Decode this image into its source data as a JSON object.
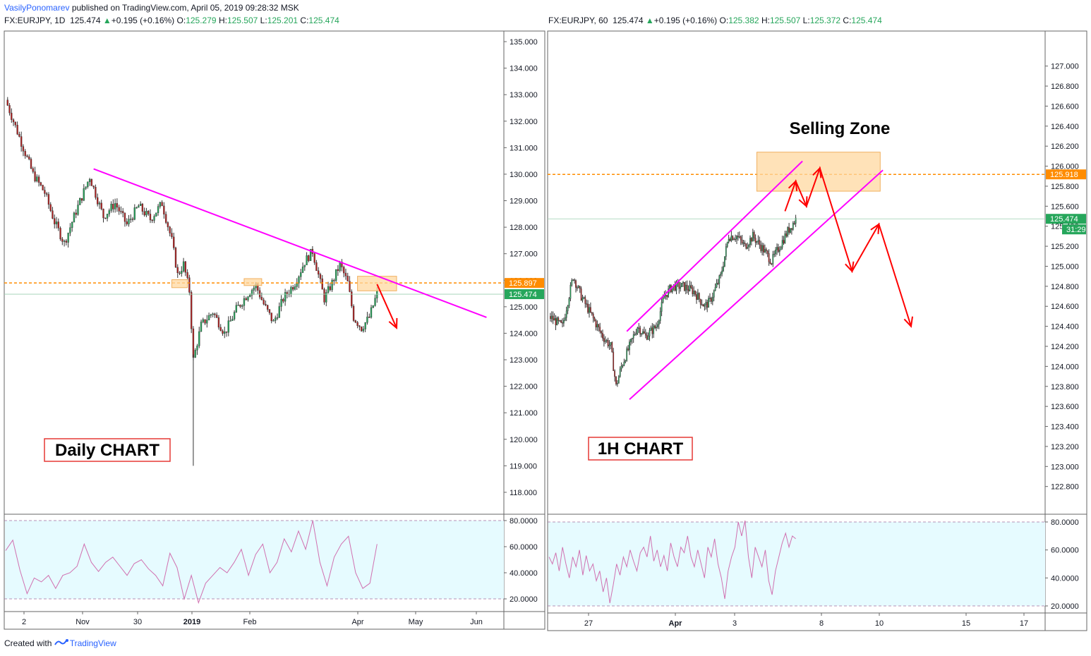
{
  "header": {
    "author": "VasilyPonomarev",
    "published_text": " published on TradingView.com, April 05, 2019 09:28:32 MSK"
  },
  "footer": {
    "created_with": "Created with",
    "brand": "TradingView"
  },
  "left_legend": {
    "symbol": "FX:EURJPY, 1D",
    "last": "125.474",
    "change": "+0.195 (+0.16%)",
    "o_label": "O:",
    "o": "125.279",
    "h_label": "H:",
    "h": "125.507",
    "l_label": "L:",
    "l": "125.201",
    "c_label": "C:",
    "c": "125.474"
  },
  "right_legend": {
    "symbol": "FX:EURJPY, 60",
    "last": "125.474",
    "change": "+0.195 (+0.16%)",
    "o_label": "O:",
    "o": "125.382",
    "h_label": "H:",
    "h": "125.507",
    "l_label": "L:",
    "l": "125.372",
    "c_label": "C:",
    "c": "125.474"
  },
  "colors": {
    "up": "#26a65b",
    "down": "#b22222",
    "trendline": "#ff00ff",
    "level": "#ff8c00",
    "zone": "#ffd8a0",
    "arrow": "#ff0000",
    "rsi_line": "#d070b0",
    "rsi_band": "#e6fbff",
    "price_tag": "#26a65b"
  },
  "chart_data": [
    {
      "type": "candlestick",
      "title": "Daily CHART",
      "symbol": "FX:EURJPY",
      "timeframe": "1D",
      "ylim": [
        117.2,
        135.4
      ],
      "y_ticks": [
        "135.000",
        "134.000",
        "133.000",
        "132.000",
        "131.000",
        "130.000",
        "129.000",
        "128.000",
        "127.000",
        "126.000",
        "125.000",
        "124.000",
        "123.000",
        "122.000",
        "121.000",
        "120.000",
        "119.000",
        "118.000"
      ],
      "x_ticks": [
        "2",
        "Nov",
        "30",
        "2019",
        "Feb",
        "Apr",
        "May",
        "Jun"
      ],
      "level": {
        "value": 125.897,
        "label": "125.897",
        "style": "dashed"
      },
      "last_price": {
        "value": 125.474,
        "label": "125.474"
      },
      "price_path": [
        [
          0,
          132.8
        ],
        [
          8,
          131.2
        ],
        [
          14,
          130.0
        ],
        [
          20,
          129.3
        ],
        [
          25,
          128.2
        ],
        [
          30,
          127.4
        ],
        [
          36,
          128.6
        ],
        [
          43,
          129.9
        ],
        [
          50,
          128.4
        ],
        [
          56,
          128.9
        ],
        [
          62,
          128.1
        ],
        [
          68,
          128.8
        ],
        [
          74,
          128.3
        ],
        [
          80,
          128.9
        ],
        [
          85,
          127.5
        ],
        [
          88,
          126.2
        ],
        [
          91,
          126.6
        ],
        [
          94,
          125.6
        ],
        [
          96,
          123.0
        ],
        [
          100,
          124.3
        ],
        [
          106,
          124.8
        ],
        [
          112,
          124.0
        ],
        [
          118,
          124.9
        ],
        [
          124,
          125.5
        ],
        [
          128,
          125.8
        ],
        [
          132,
          125.1
        ],
        [
          137,
          124.4
        ],
        [
          142,
          125.3
        ],
        [
          148,
          125.9
        ],
        [
          153,
          126.7
        ],
        [
          157,
          127.1
        ],
        [
          160,
          126.2
        ],
        [
          163,
          125.3
        ],
        [
          167,
          125.9
        ],
        [
          171,
          126.6
        ],
        [
          175,
          125.9
        ],
        [
          178,
          124.6
        ],
        [
          182,
          124.2
        ],
        [
          186,
          124.6
        ],
        [
          190,
          125.5
        ]
      ],
      "trendline": {
        "from": [
          45,
          130.2
        ],
        "to": [
          246,
          124.6
        ]
      },
      "zone": {
        "x": [
          180,
          200
        ],
        "y": [
          125.6,
          126.15
        ]
      },
      "small_zones": [
        {
          "x": [
            85,
            93
          ],
          "y": [
            125.72,
            126.02
          ]
        },
        {
          "x": [
            122,
            131
          ],
          "y": [
            125.8,
            126.06
          ]
        }
      ],
      "arrow": {
        "from": [
          190,
          125.85
        ],
        "to": [
          200,
          124.2
        ]
      },
      "rsi": {
        "levels": [
          80,
          60,
          40,
          20
        ],
        "y_ticks": [
          "80.0000",
          "60.0000",
          "40.0000",
          "20.0000"
        ],
        "bands": [
          80,
          20
        ],
        "values": [
          57,
          65,
          42,
          24,
          36,
          33,
          38,
          28,
          38,
          40,
          45,
          62,
          48,
          41,
          48,
          52,
          45,
          38,
          47,
          50,
          43,
          38,
          30,
          55,
          44,
          20,
          38,
          17,
          32,
          38,
          44,
          40,
          48,
          58,
          38,
          54,
          62,
          40,
          48,
          66,
          56,
          72,
          58,
          80,
          48,
          30,
          52,
          62,
          68,
          40,
          28,
          32,
          62
        ]
      }
    },
    {
      "type": "candlestick",
      "title": "1H CHART",
      "annotation": "Selling Zone",
      "symbol": "FX:EURJPY",
      "timeframe": "60",
      "ylim": [
        122.53,
        127.35
      ],
      "y_ticks": [
        "127.000",
        "126.800",
        "126.600",
        "126.400",
        "126.200",
        "126.000",
        "125.800",
        "125.600",
        "125.400",
        "125.200",
        "125.000",
        "124.800",
        "124.600",
        "124.400",
        "124.200",
        "124.000",
        "123.800",
        "123.600",
        "123.400",
        "123.200",
        "123.000",
        "122.800"
      ],
      "x_ticks": [
        "27",
        "Apr",
        "3",
        "8",
        "10",
        "15",
        "17"
      ],
      "level": {
        "value": 125.918,
        "label": "125.918",
        "style": "dashed"
      },
      "last_price": {
        "value": 125.474,
        "label": "125.474",
        "countdown": "31:29"
      },
      "price_path": [
        [
          0,
          124.5
        ],
        [
          10,
          124.4
        ],
        [
          18,
          124.9
        ],
        [
          24,
          124.7
        ],
        [
          32,
          124.5
        ],
        [
          40,
          124.3
        ],
        [
          46,
          124.2
        ],
        [
          50,
          123.8
        ],
        [
          54,
          124.0
        ],
        [
          60,
          124.2
        ],
        [
          66,
          124.4
        ],
        [
          72,
          124.3
        ],
        [
          80,
          124.4
        ],
        [
          86,
          124.7
        ],
        [
          92,
          124.8
        ],
        [
          100,
          124.8
        ],
        [
          108,
          124.75
        ],
        [
          116,
          124.6
        ],
        [
          120,
          124.65
        ],
        [
          128,
          124.9
        ],
        [
          134,
          125.3
        ],
        [
          140,
          125.3
        ],
        [
          146,
          125.2
        ],
        [
          152,
          125.3
        ],
        [
          158,
          125.2
        ],
        [
          166,
          125.05
        ],
        [
          172,
          125.2
        ],
        [
          178,
          125.35
        ],
        [
          184,
          125.47
        ]
      ],
      "channel": [
        {
          "from": [
            58,
            124.35
          ],
          "to": [
            189,
            126.05
          ]
        },
        {
          "from": [
            60,
            123.67
          ],
          "to": [
            249,
            125.96
          ]
        }
      ],
      "zone": {
        "x": [
          155,
          247
        ],
        "y": [
          125.75,
          126.14
        ]
      },
      "arrows": [
        [
          [
            176,
            125.55
          ],
          [
            184,
            125.85
          ],
          [
            192,
            125.6
          ],
          [
            202,
            125.98
          ],
          [
            226,
            124.95
          ],
          [
            246,
            125.42
          ],
          [
            270,
            124.4
          ]
        ]
      ],
      "rsi": {
        "levels": [
          80,
          60,
          40,
          20
        ],
        "y_ticks": [
          "80.0000",
          "60.0000",
          "40.0000",
          "20.0000"
        ],
        "bands": [
          80,
          20
        ],
        "values": [
          55,
          50,
          58,
          45,
          62,
          50,
          40,
          55,
          48,
          60,
          42,
          56,
          45,
          50,
          38,
          45,
          30,
          40,
          22,
          35,
          50,
          42,
          55,
          48,
          60,
          52,
          45,
          58,
          62,
          55,
          70,
          52,
          60,
          48,
          56,
          45,
          65,
          55,
          48,
          62,
          58,
          70,
          55,
          48,
          60,
          50,
          40,
          62,
          55,
          68,
          50,
          40,
          25,
          45,
          55,
          62,
          80,
          70,
          81,
          55,
          40,
          62,
          55,
          48,
          60,
          38,
          28,
          45,
          55,
          65,
          72,
          62,
          70,
          68
        ]
      }
    }
  ]
}
